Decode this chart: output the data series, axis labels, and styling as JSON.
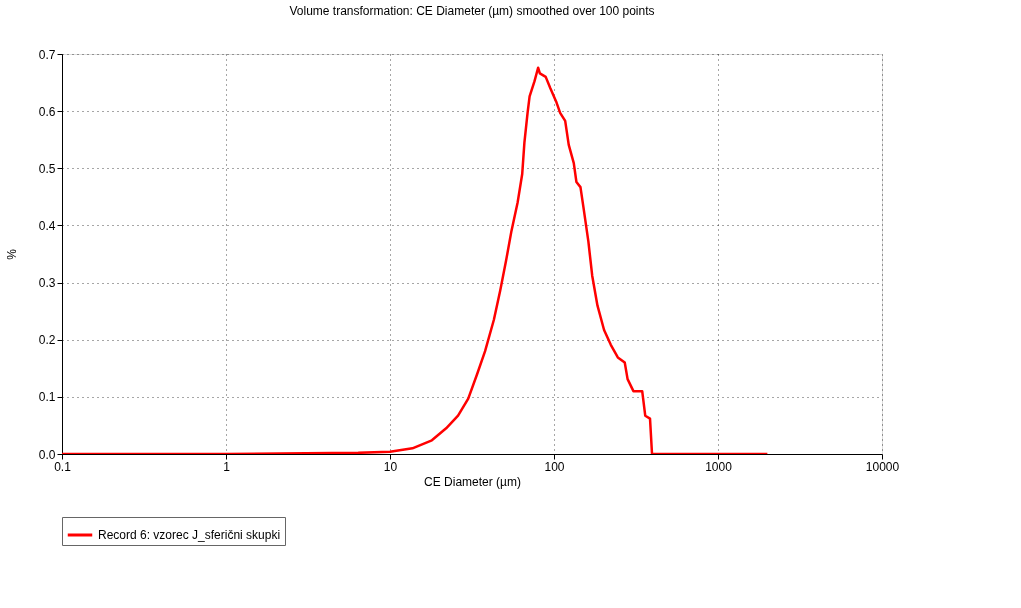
{
  "chart_data": {
    "type": "line",
    "title": "Volume transformation: CE Diameter (µm) smoothed over 100 points",
    "xlabel": "CE Diameter (µm)",
    "ylabel": "%",
    "log": "x",
    "xlim": [
      0.1,
      10000
    ],
    "xticks": [
      0.1,
      1,
      10,
      100,
      1000,
      10000
    ],
    "ylim": [
      0,
      0.7
    ],
    "yticks": [
      {
        "value": 0,
        "label": "0.0"
      },
      0.1,
      0.2,
      0.3,
      0.4,
      0.5,
      0.6,
      0.7
    ],
    "grid": true,
    "legend": "bottom",
    "marker": "none",
    "line_style": "solid",
    "series": [
      {
        "name": "Record 6: vzorec J_sferični skupki",
        "color": "#ff0000",
        "x": [
          0.1,
          1,
          6.4,
          10,
          13.7,
          18,
          22,
          26,
          30,
          34,
          38,
          43,
          47,
          51,
          55,
          60,
          64,
          66,
          69,
          71,
          76,
          80,
          82,
          89,
          95,
          103,
          109,
          117,
          123,
          132,
          137,
          145,
          151,
          162,
          171,
          184,
          202,
          222,
          245,
          270,
          281,
          305,
          345,
          360,
          385,
          396,
          2000
        ],
        "values": [
          0,
          0,
          0.002,
          0.004,
          0.01,
          0.024,
          0.045,
          0.067,
          0.097,
          0.14,
          0.18,
          0.235,
          0.286,
          0.338,
          0.39,
          0.44,
          0.49,
          0.545,
          0.597,
          0.626,
          0.652,
          0.676,
          0.666,
          0.66,
          0.64,
          0.617,
          0.597,
          0.583,
          0.541,
          0.509,
          0.476,
          0.467,
          0.433,
          0.372,
          0.312,
          0.26,
          0.217,
          0.191,
          0.169,
          0.16,
          0.131,
          0.11,
          0.11,
          0.067,
          0.062,
          0,
          0
        ]
      }
    ]
  }
}
